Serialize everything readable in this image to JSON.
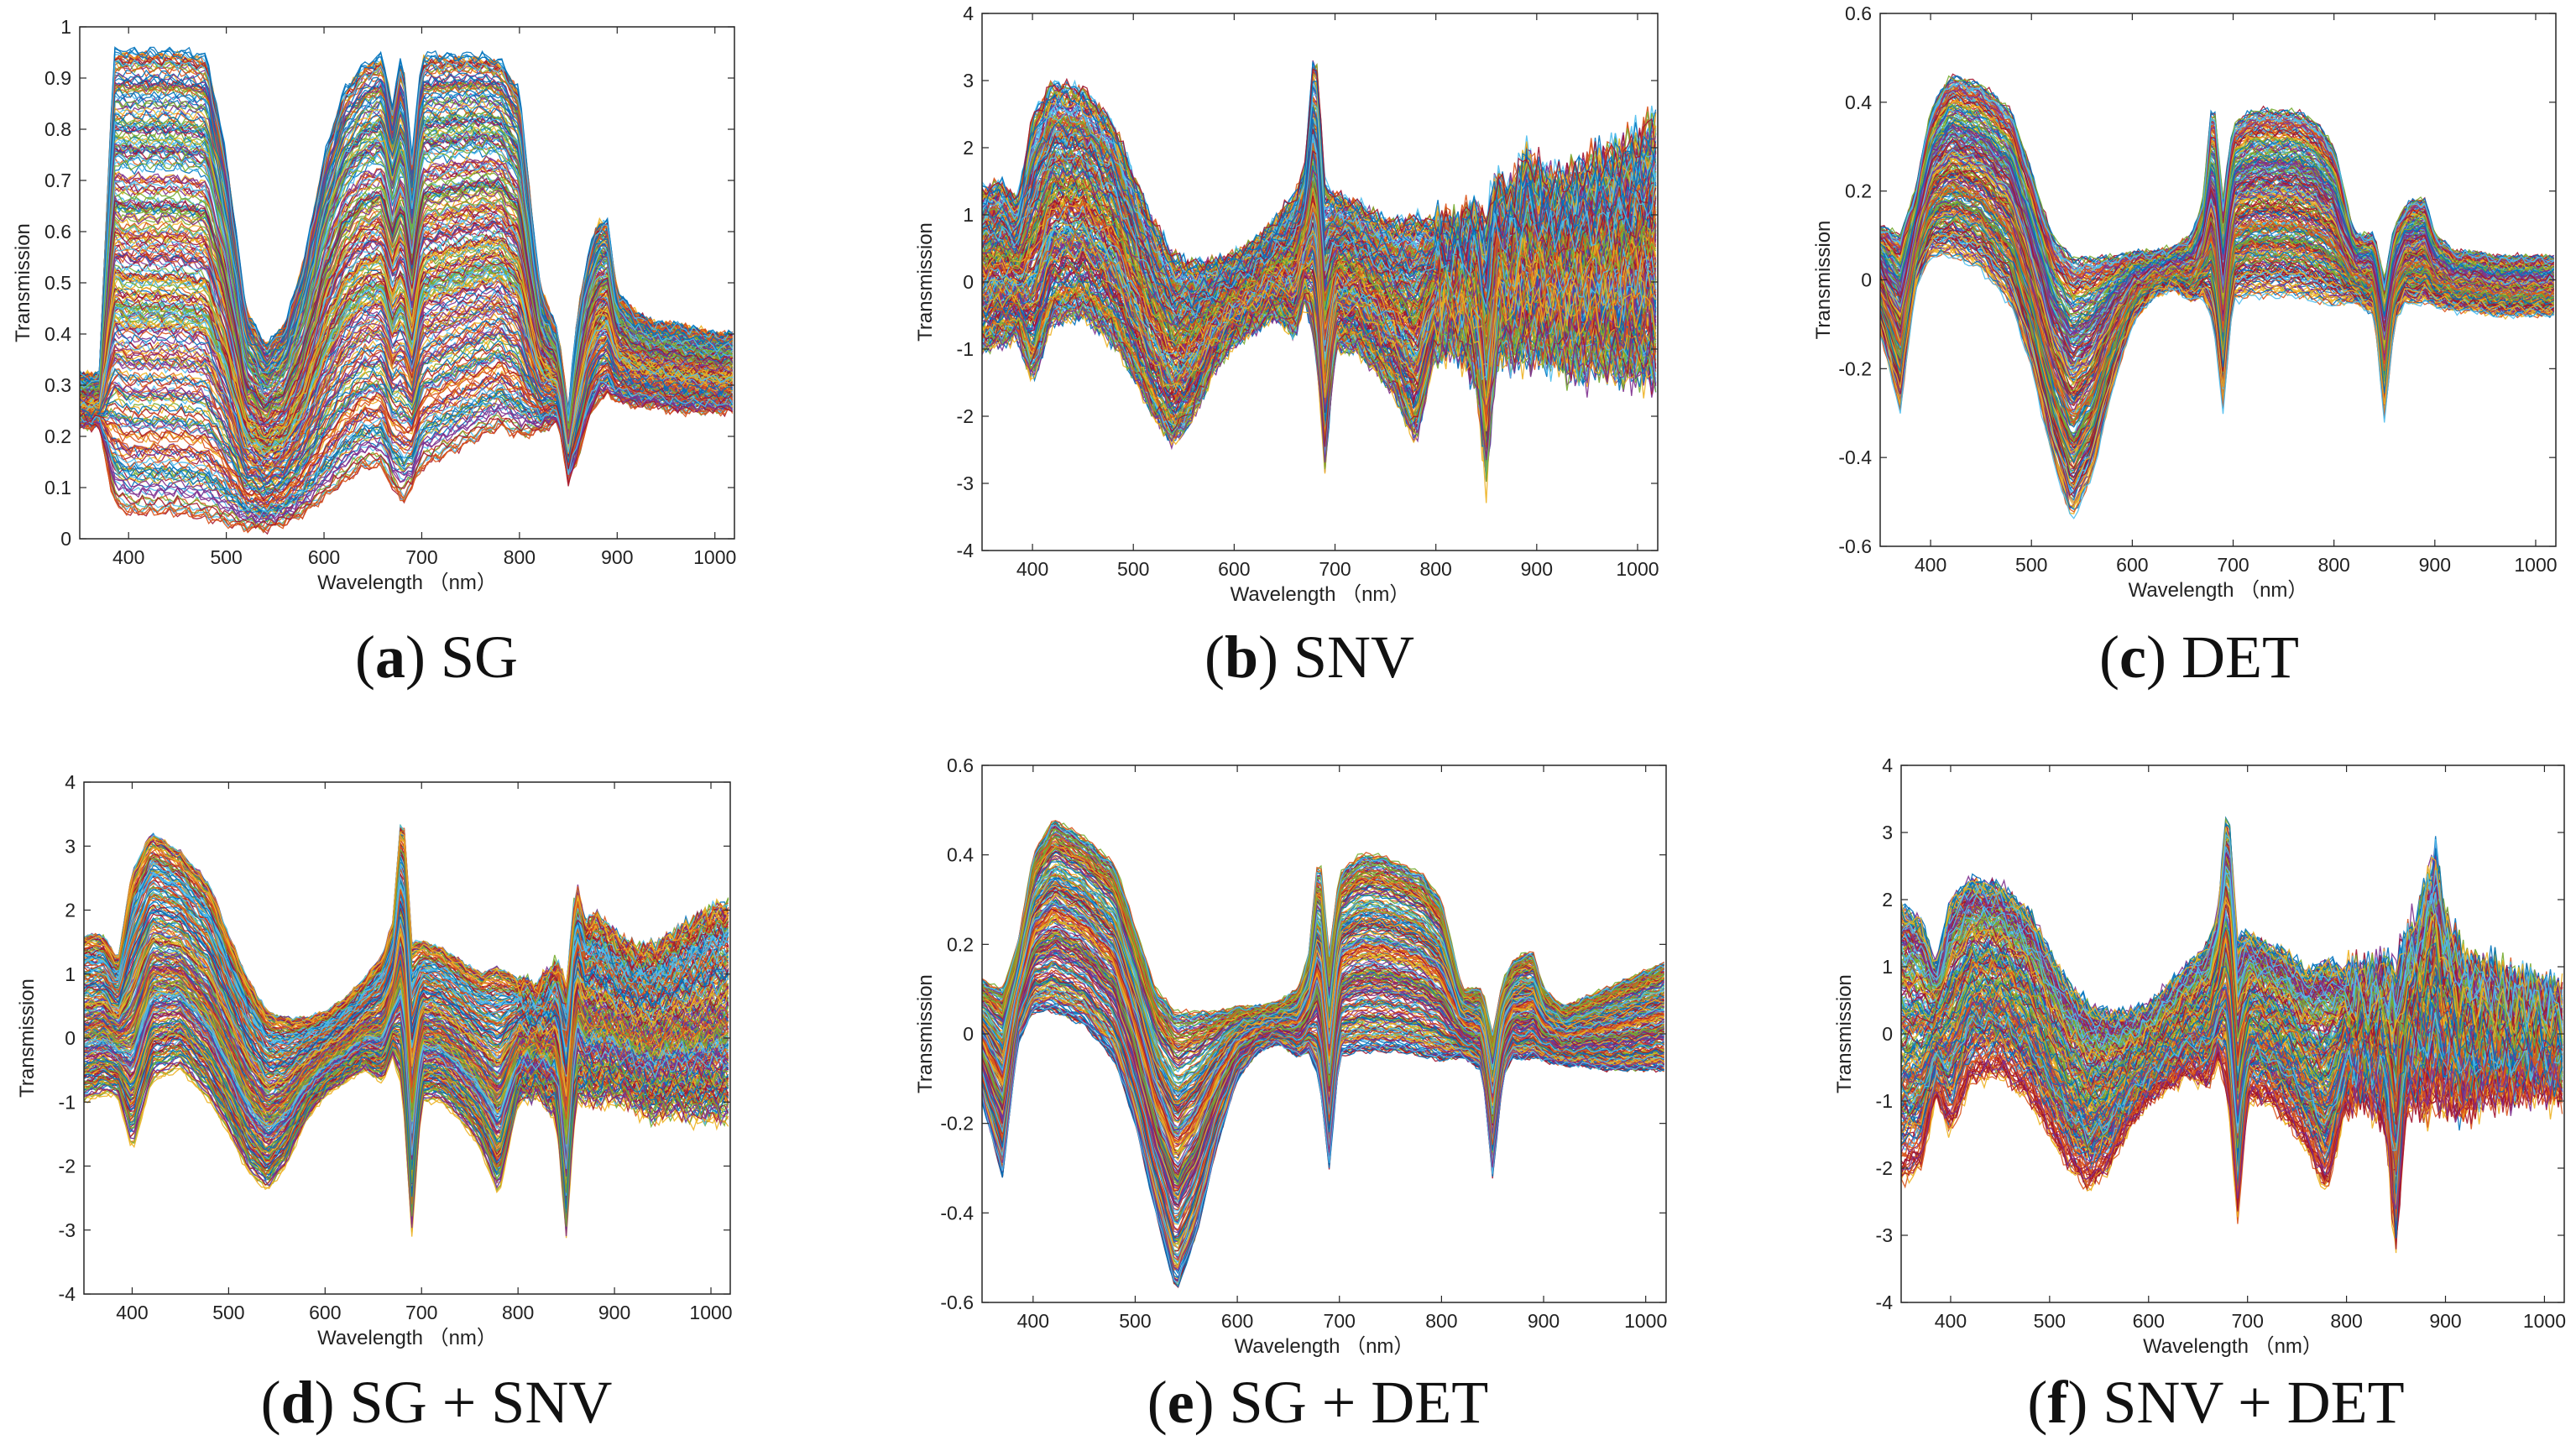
{
  "chart_data": [
    {
      "id": "a",
      "type": "line",
      "caption_letter": "a",
      "caption_rest": " SG",
      "xlabel": "Wavelength （nm）",
      "ylabel": "Transmission",
      "xlim": [
        350,
        1020
      ],
      "ylim": [
        0,
        1
      ],
      "xticks": [
        400,
        500,
        600,
        700,
        800,
        900,
        1000
      ],
      "yticks": [
        0,
        0.1,
        0.2,
        0.3,
        0.4,
        0.5,
        0.6,
        0.7,
        0.8,
        0.9,
        1
      ],
      "ytick_labels": [
        "0",
        "0.1",
        "0.2",
        "0.3",
        "0.4",
        "0.5",
        "0.6",
        "0.7",
        "0.8",
        "0.9",
        "1"
      ],
      "grid": false,
      "legend": "none",
      "series_count": 300,
      "profile": {
        "x": [
          350,
          370,
          385,
          400,
          420,
          450,
          480,
          500,
          520,
          540,
          560,
          580,
          600,
          620,
          640,
          660,
          670,
          680,
          690,
          700,
          720,
          740,
          760,
          780,
          800,
          820,
          840,
          850,
          860,
          870,
          880,
          890,
          900,
          920,
          940,
          960,
          980,
          1000,
          1020
        ],
        "low": [
          0.22,
          0.22,
          0.07,
          0.05,
          0.05,
          0.05,
          0.04,
          0.03,
          0.02,
          0.02,
          0.03,
          0.05,
          0.08,
          0.11,
          0.14,
          0.14,
          0.1,
          0.07,
          0.1,
          0.14,
          0.16,
          0.18,
          0.2,
          0.22,
          0.2,
          0.21,
          0.23,
          0.11,
          0.16,
          0.23,
          0.27,
          0.28,
          0.27,
          0.26,
          0.26,
          0.25,
          0.25,
          0.25,
          0.25
        ],
        "high": [
          0.32,
          0.32,
          0.96,
          0.96,
          0.96,
          0.96,
          0.95,
          0.75,
          0.45,
          0.38,
          0.42,
          0.55,
          0.75,
          0.88,
          0.93,
          0.95,
          0.85,
          0.96,
          0.75,
          0.95,
          0.95,
          0.95,
          0.95,
          0.94,
          0.88,
          0.5,
          0.4,
          0.25,
          0.45,
          0.55,
          0.62,
          0.62,
          0.48,
          0.44,
          0.42,
          0.42,
          0.41,
          0.4,
          0.4
        ],
        "noise": 0.006,
        "clip": [
          0,
          0.96
        ]
      }
    },
    {
      "id": "b",
      "type": "line",
      "caption_letter": "b",
      "caption_rest": " SNV",
      "xlabel": "Wavelength （nm）",
      "ylabel": "Transmission",
      "xlim": [
        350,
        1020
      ],
      "ylim": [
        -4,
        4
      ],
      "xticks": [
        400,
        500,
        600,
        700,
        800,
        900,
        1000
      ],
      "yticks": [
        -4,
        -3,
        -2,
        -1,
        0,
        1,
        2,
        3,
        4
      ],
      "ytick_labels": [
        "-4",
        "-3",
        "-2",
        "-1",
        "0",
        "1",
        "2",
        "3",
        "4"
      ],
      "grid": false,
      "legend": "none",
      "series_count": 300,
      "profile": {
        "x": [
          350,
          370,
          385,
          400,
          420,
          450,
          480,
          500,
          520,
          540,
          560,
          580,
          600,
          620,
          640,
          660,
          670,
          680,
          690,
          700,
          720,
          740,
          760,
          780,
          800,
          820,
          840,
          850,
          860,
          870,
          880,
          890,
          900,
          920,
          940,
          960,
          980,
          1000,
          1020
        ],
        "low": [
          -1.0,
          -0.9,
          -0.8,
          -1.5,
          -0.6,
          -0.5,
          -0.9,
          -1.4,
          -2.0,
          -2.4,
          -2.0,
          -1.3,
          -0.9,
          -0.7,
          -0.5,
          -0.8,
          -0.3,
          -0.8,
          -2.8,
          -1.0,
          -1.0,
          -1.3,
          -1.7,
          -2.4,
          -1.0,
          -0.9,
          -1.3,
          -2.9,
          -1.0,
          -1.0,
          -1.1,
          -1.0,
          -1.0,
          -1.1,
          -1.3,
          -1.2,
          -1.3,
          -1.3,
          -1.4
        ],
        "high": [
          1.4,
          1.5,
          1.2,
          2.5,
          3.0,
          2.9,
          2.4,
          1.6,
          0.9,
          0.4,
          0.3,
          0.3,
          0.4,
          0.6,
          0.9,
          1.3,
          1.7,
          3.7,
          1.5,
          1.3,
          1.2,
          1.0,
          0.9,
          1.0,
          0.9,
          0.8,
          1.1,
          0.8,
          1.6,
          1.3,
          1.5,
          1.9,
          1.6,
          1.5,
          1.6,
          1.8,
          1.9,
          2.1,
          2.4
        ],
        "noise": 0.08,
        "clip": [
          -4,
          4
        ]
      }
    },
    {
      "id": "c",
      "type": "line",
      "caption_letter": "c",
      "caption_rest": " DET",
      "xlabel": "Wavelength （nm）",
      "ylabel": "Transmission",
      "xlim": [
        350,
        1020
      ],
      "ylim": [
        -0.6,
        0.6
      ],
      "xticks": [
        400,
        500,
        600,
        700,
        800,
        900,
        1000
      ],
      "yticks": [
        -0.6,
        -0.4,
        -0.2,
        0,
        0.2,
        0.4,
        0.6
      ],
      "ytick_labels": [
        "-0.6",
        "-0.4",
        "-0.2",
        "0",
        "0.2",
        "0.4",
        "0.6"
      ],
      "grid": false,
      "legend": "none",
      "series_count": 300,
      "profile": {
        "x": [
          350,
          370,
          385,
          400,
          420,
          450,
          480,
          500,
          520,
          540,
          560,
          580,
          600,
          620,
          640,
          660,
          670,
          680,
          690,
          700,
          720,
          740,
          760,
          780,
          800,
          820,
          840,
          850,
          860,
          870,
          880,
          890,
          900,
          920,
          940,
          960,
          980,
          1000,
          1020
        ],
        "low": [
          -0.12,
          -0.3,
          -0.02,
          0.05,
          0.05,
          0.02,
          -0.06,
          -0.2,
          -0.4,
          -0.55,
          -0.45,
          -0.25,
          -0.1,
          -0.04,
          -0.02,
          -0.05,
          -0.04,
          -0.1,
          -0.3,
          -0.05,
          -0.04,
          -0.04,
          -0.04,
          -0.05,
          -0.06,
          -0.05,
          -0.08,
          -0.32,
          -0.1,
          -0.05,
          -0.06,
          -0.05,
          -0.06,
          -0.07,
          -0.07,
          -0.08,
          -0.08,
          -0.08,
          -0.08
        ],
        "high": [
          0.12,
          0.1,
          0.2,
          0.38,
          0.46,
          0.44,
          0.38,
          0.24,
          0.1,
          0.05,
          0.05,
          0.05,
          0.06,
          0.06,
          0.07,
          0.1,
          0.18,
          0.42,
          0.18,
          0.35,
          0.38,
          0.38,
          0.38,
          0.36,
          0.3,
          0.1,
          0.1,
          0.0,
          0.12,
          0.16,
          0.18,
          0.18,
          0.1,
          0.06,
          0.06,
          0.05,
          0.05,
          0.05,
          0.05
        ],
        "noise": 0.006,
        "clip": [
          -0.6,
          0.6
        ]
      }
    },
    {
      "id": "d",
      "type": "line",
      "caption_letter": "d",
      "caption_rest": " SG + SNV",
      "xlabel": "Wavelength （nm）",
      "ylabel": "Transmission",
      "xlim": [
        350,
        1020
      ],
      "ylim": [
        -4,
        4
      ],
      "xticks": [
        400,
        500,
        600,
        700,
        800,
        900,
        1000
      ],
      "yticks": [
        -4,
        -3,
        -2,
        -1,
        0,
        1,
        2,
        3,
        4
      ],
      "ytick_labels": [
        "-4",
        "-3",
        "-2",
        "-1",
        "0",
        "1",
        "2",
        "3",
        "4"
      ],
      "grid": false,
      "legend": "none",
      "series_count": 300,
      "profile": {
        "x": [
          350,
          370,
          385,
          400,
          420,
          450,
          480,
          500,
          520,
          540,
          560,
          580,
          600,
          620,
          640,
          660,
          670,
          680,
          690,
          700,
          720,
          740,
          760,
          780,
          800,
          820,
          840,
          850,
          860,
          870,
          880,
          890,
          900,
          920,
          940,
          960,
          980,
          1000,
          1020
        ],
        "low": [
          -1.0,
          -0.9,
          -0.9,
          -1.8,
          -0.7,
          -0.5,
          -1.0,
          -1.5,
          -2.1,
          -2.4,
          -2.0,
          -1.3,
          -0.9,
          -0.7,
          -0.5,
          -0.7,
          -0.3,
          -0.8,
          -3.1,
          -1.0,
          -1.0,
          -1.3,
          -1.7,
          -2.5,
          -1.0,
          -0.9,
          -1.3,
          -3.1,
          -1.0,
          -1.0,
          -1.1,
          -1.0,
          -1.0,
          -1.1,
          -1.3,
          -1.2,
          -1.3,
          -1.3,
          -1.3
        ],
        "high": [
          1.6,
          1.6,
          1.2,
          2.6,
          3.2,
          2.9,
          2.4,
          1.6,
          0.9,
          0.4,
          0.3,
          0.3,
          0.4,
          0.6,
          0.9,
          1.3,
          1.8,
          3.7,
          1.5,
          1.5,
          1.4,
          1.2,
          1.0,
          1.1,
          0.9,
          0.8,
          1.2,
          0.8,
          2.4,
          1.8,
          1.9,
          1.8,
          1.6,
          1.4,
          1.4,
          1.6,
          1.8,
          2.0,
          2.1
        ],
        "noise": 0.03,
        "clip": [
          -4,
          4
        ]
      }
    },
    {
      "id": "e",
      "type": "line",
      "caption_letter": "e",
      "caption_rest": " SG + DET",
      "xlabel": "Wavelength （nm）",
      "ylabel": "Transmission",
      "xlim": [
        350,
        1020
      ],
      "ylim": [
        -0.6,
        0.6
      ],
      "xticks": [
        400,
        500,
        600,
        700,
        800,
        900,
        1000
      ],
      "yticks": [
        -0.6,
        -0.4,
        -0.2,
        0,
        0.2,
        0.4,
        0.6
      ],
      "ytick_labels": [
        "-0.6",
        "-0.4",
        "-0.2",
        "0",
        "0.2",
        "0.4",
        "0.6"
      ],
      "grid": false,
      "legend": "none",
      "series_count": 300,
      "profile": {
        "x": [
          350,
          370,
          385,
          400,
          420,
          450,
          480,
          500,
          520,
          540,
          560,
          580,
          600,
          620,
          640,
          660,
          670,
          680,
          690,
          700,
          720,
          740,
          760,
          780,
          800,
          820,
          840,
          850,
          860,
          870,
          880,
          890,
          900,
          920,
          940,
          960,
          980,
          1000,
          1020
        ],
        "low": [
          -0.15,
          -0.32,
          -0.02,
          0.05,
          0.05,
          0.02,
          -0.06,
          -0.2,
          -0.4,
          -0.58,
          -0.45,
          -0.25,
          -0.1,
          -0.04,
          -0.02,
          -0.05,
          -0.04,
          -0.1,
          -0.3,
          -0.05,
          -0.04,
          -0.04,
          -0.04,
          -0.05,
          -0.06,
          -0.05,
          -0.08,
          -0.32,
          -0.1,
          -0.05,
          -0.06,
          -0.05,
          -0.06,
          -0.07,
          -0.07,
          -0.08,
          -0.08,
          -0.08,
          -0.08
        ],
        "high": [
          0.12,
          0.1,
          0.2,
          0.4,
          0.48,
          0.44,
          0.38,
          0.24,
          0.1,
          0.05,
          0.05,
          0.05,
          0.06,
          0.06,
          0.07,
          0.1,
          0.18,
          0.42,
          0.18,
          0.36,
          0.4,
          0.4,
          0.38,
          0.36,
          0.3,
          0.1,
          0.1,
          0.0,
          0.12,
          0.16,
          0.18,
          0.18,
          0.1,
          0.06,
          0.08,
          0.1,
          0.12,
          0.14,
          0.16
        ],
        "noise": 0.004,
        "clip": [
          -0.6,
          0.6
        ]
      }
    },
    {
      "id": "f",
      "type": "line",
      "caption_letter": "f",
      "caption_rest": " SNV + DET",
      "xlabel": "Wavelength （nm）",
      "ylabel": "Transmission",
      "xlim": [
        350,
        1020
      ],
      "ylim": [
        -4,
        4
      ],
      "xticks": [
        400,
        500,
        600,
        700,
        800,
        900,
        1000
      ],
      "yticks": [
        -4,
        -3,
        -2,
        -1,
        0,
        1,
        2,
        3,
        4
      ],
      "ytick_labels": [
        "-4",
        "-3",
        "-2",
        "-1",
        "0",
        "1",
        "2",
        "3",
        "4"
      ],
      "grid": false,
      "legend": "none",
      "series_count": 300,
      "profile": {
        "x": [
          350,
          370,
          385,
          400,
          420,
          450,
          480,
          500,
          520,
          540,
          560,
          580,
          600,
          620,
          640,
          660,
          670,
          680,
          690,
          700,
          720,
          740,
          760,
          780,
          800,
          820,
          840,
          850,
          860,
          870,
          880,
          890,
          900,
          920,
          940,
          960,
          980,
          1000,
          1020
        ],
        "low": [
          -2.2,
          -2.0,
          -0.9,
          -1.5,
          -0.7,
          -0.6,
          -1.0,
          -1.5,
          -2.0,
          -2.3,
          -2.0,
          -1.4,
          -1.0,
          -0.8,
          -0.6,
          -0.8,
          -0.4,
          -0.9,
          -2.8,
          -1.0,
          -1.0,
          -1.3,
          -1.7,
          -2.4,
          -1.0,
          -0.9,
          -1.3,
          -3.2,
          -1.0,
          -1.0,
          -1.1,
          -1.0,
          -1.0,
          -1.1,
          -0.9,
          -0.9,
          -0.8,
          -0.8,
          -0.8
        ],
        "high": [
          1.9,
          1.7,
          1.0,
          2.0,
          2.3,
          2.2,
          1.8,
          1.2,
          0.7,
          0.4,
          0.3,
          0.3,
          0.4,
          0.7,
          1.0,
          1.3,
          1.8,
          3.5,
          1.4,
          1.5,
          1.3,
          1.2,
          0.9,
          1.1,
          0.9,
          0.8,
          1.0,
          0.9,
          1.4,
          1.5,
          2.2,
          2.6,
          1.6,
          1.0,
          0.9,
          0.8,
          0.7,
          0.6,
          0.5
        ],
        "noise": 0.08,
        "clip": [
          -4,
          4
        ]
      }
    }
  ],
  "colors": {
    "palette": [
      "#0072BD",
      "#D95319",
      "#EDB120",
      "#7E2F8E",
      "#77AC30",
      "#4DBEEE",
      "#A2142F"
    ],
    "axis": "#262626"
  }
}
